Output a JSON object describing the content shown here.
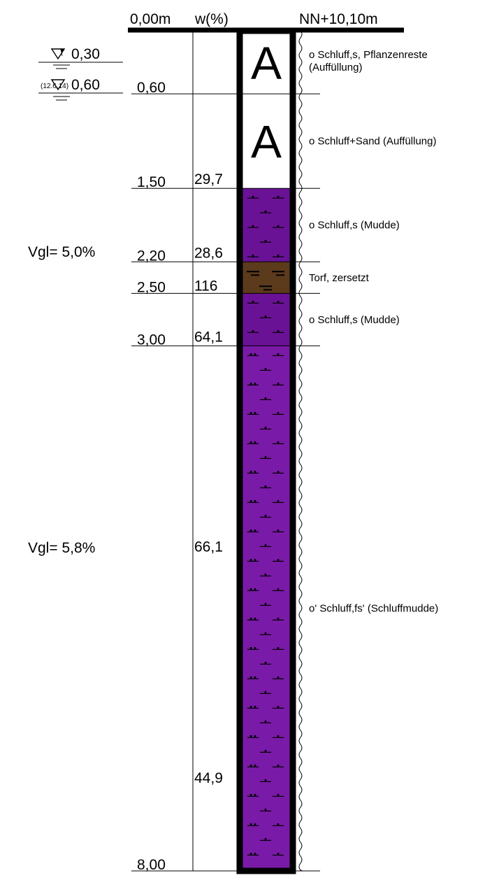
{
  "header": {
    "depth_start": "0,00m",
    "water_content_label": "w(%)",
    "elevation": "NN+10,10m"
  },
  "groundwater": [
    {
      "depth": "0,30",
      "note": ""
    },
    {
      "depth": "0,60",
      "note": "(12.6.14)"
    }
  ],
  "layer_boundaries": [
    {
      "depth": 0.6,
      "label": "0,60"
    },
    {
      "depth": 1.5,
      "label": "1,50"
    },
    {
      "depth": 2.2,
      "label": "2,20"
    },
    {
      "depth": 2.5,
      "label": "2,50"
    },
    {
      "depth": 3.0,
      "label": "3,00"
    },
    {
      "depth": 8.0,
      "label": "8,00"
    }
  ],
  "water_contents": [
    {
      "depth": 1.5,
      "value": "29,7"
    },
    {
      "depth": 2.2,
      "value": "28,6"
    },
    {
      "depth": 2.5,
      "value": "116"
    },
    {
      "depth": 3.0,
      "value": "64,1"
    },
    {
      "depth": 5.0,
      "value": "66,1"
    },
    {
      "depth": 7.2,
      "value": "44,9"
    }
  ],
  "loss_on_ignition": [
    {
      "depth": 2.2,
      "value": "Vgl= 5,0%"
    },
    {
      "depth": 5.0,
      "value": "Vgl= 5,8%"
    }
  ],
  "layers": [
    {
      "top": 0.0,
      "bottom": 0.6,
      "symbol": "A",
      "color": "#ffffff",
      "desc": [
        "o Schluff,s, Pflanzenreste",
        "(Auffüllung)"
      ]
    },
    {
      "top": 0.6,
      "bottom": 1.5,
      "symbol": "A",
      "color": "#ffffff",
      "desc": [
        "o Schluff+Sand (Auffüllung)"
      ]
    },
    {
      "top": 1.5,
      "bottom": 2.2,
      "symbol": "",
      "color": "#6a1295",
      "desc": [
        "o Schluff,s (Mudde)"
      ]
    },
    {
      "top": 2.2,
      "bottom": 2.5,
      "symbol": "",
      "color": "#5c3a1c",
      "desc": [
        "Torf, zersetzt"
      ]
    },
    {
      "top": 2.5,
      "bottom": 3.0,
      "symbol": "",
      "color": "#6a1295",
      "desc": [
        "o Schluff,s (Mudde)"
      ]
    },
    {
      "top": 3.0,
      "bottom": 8.0,
      "symbol": "",
      "color": "#7a1aa8",
      "desc": [
        "o' Schluff,fs' (Schluffmudde)"
      ]
    }
  ]
}
